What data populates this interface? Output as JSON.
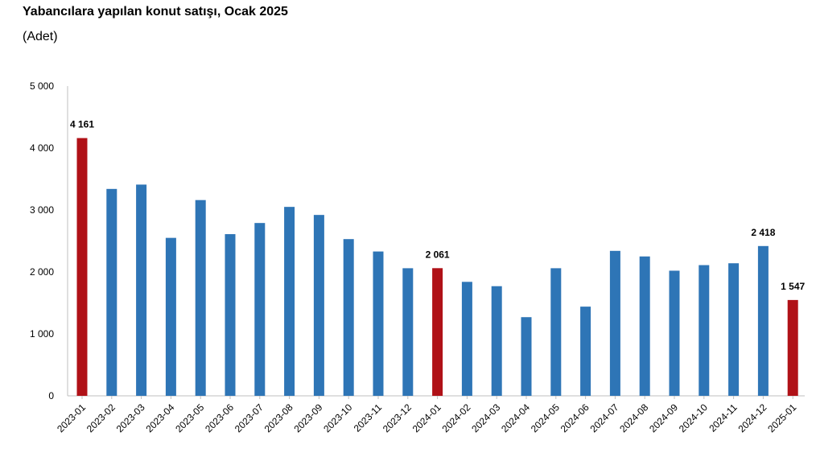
{
  "title": "Yabancılara yapılan konut satışı, Ocak 2025",
  "subtitle": "(Adet)",
  "colors": {
    "bar_default": "#2E75B6",
    "bar_highlight": "#B01117",
    "axis": "#BFBFBF"
  },
  "chart_data": {
    "type": "bar",
    "title": "Yabancılara yapılan konut satışı, Ocak 2025",
    "subtitle": "(Adet)",
    "xlabel": "",
    "ylabel": "",
    "ylim": [
      0,
      5000
    ],
    "yticks": [
      0,
      1000,
      2000,
      3000,
      4000,
      5000
    ],
    "ytick_labels": [
      "0",
      "1 000",
      "2 000",
      "3 000",
      "4 000",
      "5 000"
    ],
    "grid": false,
    "legend": "none",
    "categories": [
      "2023-01",
      "2023-02",
      "2023-03",
      "2023-04",
      "2023-05",
      "2023-06",
      "2023-07",
      "2023-08",
      "2023-09",
      "2023-10",
      "2023-11",
      "2023-12",
      "2024-01",
      "2024-02",
      "2024-03",
      "2024-04",
      "2024-05",
      "2024-06",
      "2024-07",
      "2024-08",
      "2024-09",
      "2024-10",
      "2024-11",
      "2024-12",
      "2025-01"
    ],
    "values": [
      4161,
      3340,
      3410,
      2550,
      3160,
      2610,
      2790,
      3050,
      2920,
      2530,
      2330,
      2060,
      2061,
      1840,
      1770,
      1270,
      2060,
      1440,
      2340,
      2250,
      2020,
      2110,
      2140,
      2418,
      1547
    ],
    "highlighted": [
      0,
      12,
      24
    ],
    "data_labels": [
      {
        "index": 0,
        "text": "4 161"
      },
      {
        "index": 12,
        "text": "2 061"
      },
      {
        "index": 23,
        "text": "2 418"
      },
      {
        "index": 24,
        "text": "1 547"
      }
    ]
  }
}
